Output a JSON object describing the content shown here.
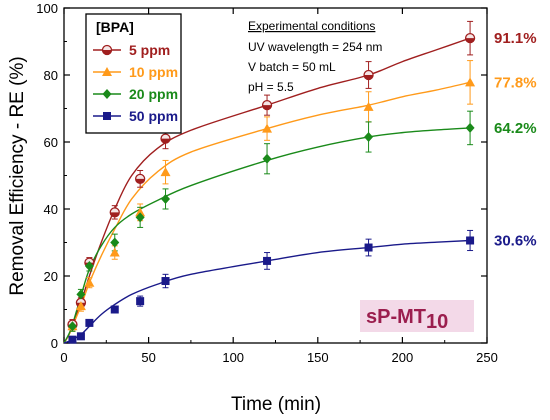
{
  "chart_data": {
    "type": "line",
    "xlabel": "Time (min)",
    "ylabel": "Removal Efficiency - RE (%)",
    "xlim": [
      0,
      250
    ],
    "ylim": [
      0,
      100
    ],
    "xticks": [
      "0",
      "50",
      "100",
      "150",
      "200",
      "250"
    ],
    "yticks": [
      "0",
      "20",
      "40",
      "60",
      "80",
      "100"
    ],
    "legend": {
      "title": "[BPA]",
      "placement": "top-left"
    },
    "x": [
      5,
      10,
      15,
      30,
      45,
      60,
      120,
      180,
      240
    ],
    "series": [
      {
        "name": "5 ppm",
        "color": "#a01f1f",
        "marker": "circle",
        "values": [
          5.5,
          12,
          24,
          39,
          49,
          61,
          71,
          80,
          91
        ],
        "errors": [
          1.5,
          1.5,
          1.5,
          2,
          2.5,
          3,
          3,
          4,
          5
        ],
        "fit": [
          0,
          2.5,
          5.5,
          12,
          20,
          30,
          40,
          50,
          58,
          63.5,
          71,
          76,
          80,
          84,
          87.5,
          91
        ],
        "end_label": "91.1%"
      },
      {
        "name": "10 ppm",
        "color": "#ff9a1a",
        "marker": "triangle",
        "values": [
          5,
          11,
          18,
          27,
          39,
          51,
          64,
          70.5,
          77.8
        ],
        "errors": [
          1.5,
          1.5,
          1.5,
          2,
          2.5,
          3.5,
          3.5,
          4.5,
          6.5
        ],
        "fit": [
          0,
          2.5,
          5,
          11,
          18,
          26,
          34,
          43,
          51,
          57,
          64,
          68,
          71,
          73.5,
          75.5,
          77.8
        ],
        "end_label": "77.8%"
      },
      {
        "name": "20 ppm",
        "color": "#1a8a1a",
        "marker": "diamond",
        "values": [
          5,
          14.5,
          23,
          30,
          37.5,
          43,
          55,
          61.5,
          64.2
        ],
        "errors": [
          1.5,
          1.5,
          1.5,
          2.5,
          3,
          3,
          4.5,
          4.5,
          5
        ],
        "fit": [
          0,
          2.8,
          5.5,
          14,
          22,
          29,
          34.5,
          38.5,
          42.5,
          47,
          54.5,
          58.5,
          61.5,
          62.8,
          63.6,
          64.2
        ],
        "end_label": "64.2%"
      },
      {
        "name": "50 ppm",
        "color": "#1a1a8a",
        "marker": "square",
        "values": [
          1,
          2,
          6,
          10,
          12.5,
          18.5,
          24.5,
          28.5,
          30.6
        ],
        "errors": [
          0.5,
          0.5,
          0.8,
          1,
          1.5,
          2,
          2.5,
          2.5,
          3
        ],
        "fit": [
          0,
          0.5,
          1,
          2.5,
          5,
          8.5,
          11.5,
          14.5,
          17.5,
          20.5,
          24.5,
          27,
          28.5,
          29.5,
          30.1,
          30.6
        ],
        "end_label": "30.6%"
      }
    ],
    "fit_x": [
      0,
      3,
      5,
      10,
      15,
      22,
      30,
      40,
      55,
      75,
      120,
      150,
      180,
      200,
      220,
      240
    ],
    "conditions": {
      "title": "Experimental conditions",
      "lines": [
        "UV wavelength = 254 nm",
        "V batch = 50 mL",
        "pH = 5.5"
      ]
    },
    "sample_label": {
      "main": "sP-MT",
      "sub": "10",
      "color": "#9b1e4e",
      "background": "#f3d9e8"
    }
  }
}
